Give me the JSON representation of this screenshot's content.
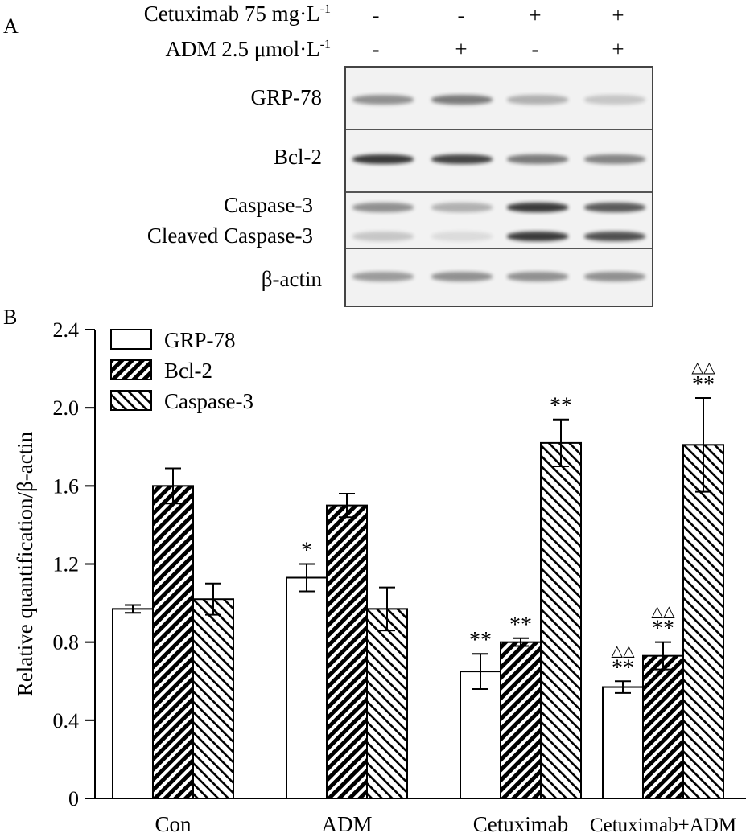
{
  "panel_a": {
    "letter": "A",
    "treatments": [
      {
        "label": "Cetuximab 75 mg·L",
        "sup": "-1",
        "marks": [
          "-",
          "-",
          "+",
          "+"
        ]
      },
      {
        "label": "ADM 2.5 μmol·L",
        "sup": "-1",
        "marks": [
          "-",
          "+",
          "-",
          "+"
        ]
      }
    ],
    "bands": [
      {
        "label": "GRP-78"
      },
      {
        "label": "Bcl-2"
      },
      {
        "label": "Caspase-3"
      },
      {
        "label": "Cleaved Caspase-3"
      },
      {
        "label": "β-actin"
      }
    ],
    "band_intensity": {
      "GRP-78": [
        0.45,
        0.55,
        0.3,
        0.2
      ],
      "Bcl-2": [
        0.85,
        0.8,
        0.55,
        0.5
      ],
      "Caspase-3": [
        0.45,
        0.3,
        0.85,
        0.7
      ],
      "Cleaved Caspase-3": [
        0.2,
        0.1,
        0.85,
        0.75
      ],
      "β-actin": [
        0.4,
        0.45,
        0.45,
        0.45
      ]
    },
    "band_color": "#1a1a1a"
  },
  "panel_b": {
    "letter": "B"
  },
  "chart_data": {
    "type": "bar",
    "ylabel": "Relative quantification/β-actin",
    "xlabel": "",
    "ylim": [
      0,
      2.4
    ],
    "yticks": [
      "0",
      "0.4",
      "0.8",
      "1.2",
      "1.6",
      "2.0",
      "2.4"
    ],
    "ytick_values": [
      0,
      0.4,
      0.8,
      1.2,
      1.6,
      2.0,
      2.4
    ],
    "categories": [
      "Con",
      "ADM",
      "Cetuximab",
      "Cetuximab+ADM"
    ],
    "legend_position": "top-left",
    "series": [
      {
        "name": "GRP-78",
        "pattern": "open",
        "values": [
          0.97,
          1.13,
          0.65,
          0.57
        ],
        "errors": [
          0.02,
          0.07,
          0.09,
          0.03
        ],
        "annotations": [
          "",
          "*",
          "**",
          "**"
        ],
        "annotations_top": [
          "",
          "",
          "",
          "△△"
        ]
      },
      {
        "name": "Bcl-2",
        "pattern": "hatch-down",
        "values": [
          1.6,
          1.5,
          0.8,
          0.73
        ],
        "errors": [
          0.09,
          0.06,
          0.02,
          0.07
        ],
        "annotations": [
          "",
          "",
          "**",
          "**"
        ],
        "annotations_top": [
          "",
          "",
          "",
          "△△"
        ]
      },
      {
        "name": "Caspase-3",
        "pattern": "hatch-up",
        "values": [
          1.02,
          0.97,
          1.82,
          1.81
        ],
        "errors": [
          0.08,
          0.11,
          0.12,
          0.24
        ],
        "annotations": [
          "",
          "",
          "**",
          "**"
        ],
        "annotations_top": [
          "",
          "",
          "",
          "△△"
        ]
      }
    ]
  }
}
